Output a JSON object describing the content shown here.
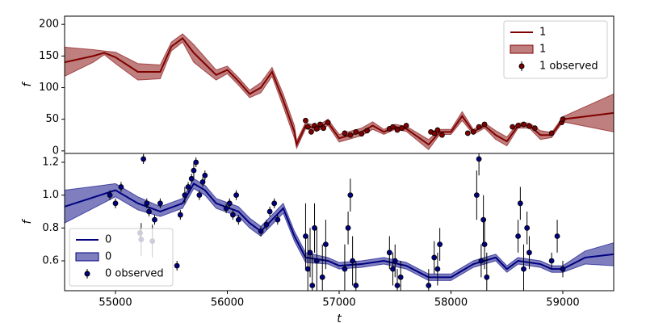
{
  "chart_data": [
    {
      "type": "line",
      "ylabel": "f",
      "xlim": [
        54545,
        59455
      ],
      "ylim": [
        -4,
        213
      ],
      "yticks": [
        0,
        50,
        100,
        150,
        200
      ],
      "legend": "upper right",
      "series": [
        {
          "name": "1",
          "style": "line",
          "color": "#800000",
          "x": [
            54545,
            54800,
            54900,
            55000,
            55200,
            55400,
            55500,
            55600,
            55700,
            55900,
            56000,
            56100,
            56200,
            56300,
            56400,
            56500,
            56600,
            56620,
            56700,
            56800,
            56900,
            57000,
            57200,
            57300,
            57400,
            57500,
            57600,
            57800,
            57900,
            58000,
            58100,
            58200,
            58300,
            58400,
            58500,
            58600,
            58700,
            58800,
            58900,
            59000,
            59455
          ],
          "values": [
            140,
            150,
            155,
            148,
            125,
            125,
            165,
            178,
            155,
            120,
            128,
            110,
            90,
            100,
            125,
            80,
            30,
            10,
            40,
            35,
            45,
            20,
            30,
            40,
            30,
            38,
            35,
            10,
            30,
            30,
            55,
            30,
            40,
            25,
            15,
            40,
            40,
            25,
            25,
            50,
            60
          ]
        },
        {
          "name": "1",
          "style": "band",
          "color": "#800000",
          "x": [
            54545,
            54800,
            54900,
            55000,
            55200,
            55400,
            55500,
            55600,
            55700,
            55900,
            56000,
            56100,
            56200,
            56300,
            56400,
            56500,
            56600,
            56620,
            56700,
            56800,
            56900,
            57000,
            57200,
            57300,
            57400,
            57500,
            57600,
            57800,
            57900,
            58000,
            58100,
            58200,
            58300,
            58400,
            58500,
            58600,
            58700,
            58800,
            58900,
            59000,
            59455
          ],
          "lower": [
            118,
            140,
            152,
            138,
            112,
            114,
            158,
            172,
            140,
            112,
            122,
            104,
            84,
            92,
            118,
            70,
            20,
            4,
            35,
            31,
            40,
            14,
            24,
            34,
            26,
            34,
            31,
            2,
            26,
            26,
            48,
            26,
            36,
            18,
            8,
            36,
            36,
            18,
            21,
            46,
            30
          ],
          "upper": [
            164,
            160,
            158,
            156,
            138,
            136,
            172,
            185,
            168,
            128,
            134,
            116,
            96,
            108,
            132,
            90,
            40,
            16,
            45,
            39,
            50,
            26,
            36,
            46,
            34,
            42,
            39,
            18,
            34,
            34,
            62,
            34,
            44,
            32,
            22,
            44,
            44,
            32,
            29,
            54,
            90
          ]
        },
        {
          "name": "1 observed",
          "style": "errorbar",
          "color": "#800000",
          "x": [
            56700,
            56720,
            56750,
            56780,
            56800,
            56830,
            56860,
            56900,
            57050,
            57100,
            57150,
            57200,
            57250,
            57450,
            57480,
            57520,
            57560,
            57600,
            57820,
            57850,
            57880,
            57920,
            58150,
            58200,
            58250,
            58300,
            58550,
            58600,
            58650,
            58700,
            58750,
            58900,
            58990,
            59000
          ],
          "values": [
            48,
            38,
            30,
            40,
            35,
            42,
            36,
            45,
            28,
            25,
            30,
            27,
            32,
            35,
            38,
            33,
            36,
            40,
            30,
            28,
            33,
            25,
            28,
            30,
            38,
            42,
            38,
            40,
            42,
            39,
            36,
            28,
            45,
            50
          ],
          "errors": [
            4,
            4,
            4,
            4,
            4,
            4,
            4,
            4,
            4,
            4,
            4,
            4,
            4,
            4,
            4,
            4,
            4,
            4,
            4,
            4,
            4,
            4,
            4,
            4,
            4,
            4,
            4,
            4,
            4,
            4,
            4,
            4,
            4,
            4
          ]
        }
      ]
    },
    {
      "type": "line",
      "ylabel": "f",
      "xlabel": "t",
      "xlim": [
        54545,
        59455
      ],
      "ylim": [
        0.418,
        1.254
      ],
      "xticks": [
        55000,
        56000,
        57000,
        58000,
        59000
      ],
      "yticks": [
        0.6,
        0.8,
        {
          "value": 1,
          "label": "1.0"
        },
        1.2
      ],
      "legend": "lower left",
      "series": [
        {
          "name": "0",
          "style": "line",
          "color": "#000080",
          "x": [
            54545,
            55000,
            55200,
            55400,
            55600,
            55700,
            55800,
            55900,
            56100,
            56200,
            56300,
            56500,
            56600,
            56700,
            56900,
            57000,
            57200,
            57400,
            57600,
            57800,
            58000,
            58200,
            58400,
            58500,
            58600,
            58800,
            58900,
            59000,
            59200,
            59455
          ],
          "values": [
            0.93,
            1.03,
            0.95,
            0.9,
            0.95,
            1.07,
            1.03,
            0.95,
            0.9,
            0.83,
            0.78,
            0.92,
            0.75,
            0.62,
            0.6,
            0.57,
            0.58,
            0.6,
            0.57,
            0.5,
            0.5,
            0.58,
            0.62,
            0.55,
            0.6,
            0.58,
            0.55,
            0.55,
            0.62,
            0.64
          ]
        },
        {
          "name": "0",
          "style": "band",
          "color": "#000080",
          "x": [
            54545,
            55000,
            55200,
            55400,
            55600,
            55700,
            55800,
            55900,
            56100,
            56200,
            56300,
            56500,
            56600,
            56700,
            56900,
            57000,
            57200,
            57400,
            57600,
            57800,
            58000,
            58200,
            58400,
            58500,
            58600,
            58800,
            58900,
            59000,
            59200,
            59455
          ],
          "lower": [
            0.83,
            0.99,
            0.91,
            0.87,
            0.92,
            1.04,
            1.0,
            0.92,
            0.87,
            0.8,
            0.75,
            0.89,
            0.72,
            0.59,
            0.58,
            0.55,
            0.56,
            0.58,
            0.55,
            0.48,
            0.48,
            0.56,
            0.6,
            0.53,
            0.58,
            0.56,
            0.53,
            0.53,
            0.58,
            0.57
          ],
          "upper": [
            1.03,
            1.07,
            0.99,
            0.93,
            0.98,
            1.1,
            1.06,
            0.98,
            0.93,
            0.86,
            0.81,
            0.95,
            0.78,
            0.65,
            0.62,
            0.59,
            0.6,
            0.62,
            0.59,
            0.52,
            0.52,
            0.6,
            0.64,
            0.57,
            0.62,
            0.6,
            0.57,
            0.57,
            0.66,
            0.71
          ]
        },
        {
          "name": "0 observed",
          "style": "errorbar",
          "color": "#000080",
          "x": [
            54950,
            55000,
            55050,
            55220,
            55230,
            55250,
            55280,
            55300,
            55330,
            55350,
            55400,
            55550,
            55580,
            55620,
            55650,
            55680,
            55700,
            55720,
            55750,
            55780,
            55800,
            55990,
            56020,
            56050,
            56080,
            56100,
            56300,
            56350,
            56380,
            56420,
            56450,
            56700,
            56720,
            56740,
            56760,
            56780,
            56800,
            56850,
            56880,
            57050,
            57080,
            57100,
            57120,
            57150,
            57450,
            57480,
            57500,
            57520,
            57550,
            57800,
            57850,
            57880,
            57900,
            58230,
            58250,
            58270,
            58290,
            58300,
            58320,
            58600,
            58620,
            58650,
            58680,
            58700,
            58900,
            58950,
            59000
          ],
          "values": [
            1.0,
            0.95,
            1.05,
            0.77,
            0.73,
            1.22,
            0.95,
            0.9,
            0.72,
            0.85,
            0.95,
            0.57,
            0.88,
            1.0,
            1.05,
            1.1,
            1.15,
            1.2,
            1.0,
            1.08,
            1.12,
            0.92,
            0.95,
            0.88,
            1.0,
            0.85,
            0.78,
            0.82,
            0.9,
            0.95,
            0.85,
            0.75,
            0.55,
            0.65,
            0.45,
            0.8,
            0.6,
            0.5,
            0.7,
            0.55,
            0.8,
            1.0,
            0.6,
            0.45,
            0.65,
            0.55,
            0.6,
            0.45,
            0.5,
            0.45,
            0.62,
            0.55,
            0.7,
            1.0,
            1.22,
            0.6,
            0.85,
            0.7,
            0.5,
            0.75,
            0.95,
            0.55,
            0.8,
            0.65,
            0.6,
            0.75,
            0.55
          ],
          "errors": [
            0.03,
            0.03,
            0.03,
            0.03,
            0.1,
            0.03,
            0.03,
            0.03,
            0.1,
            0.03,
            0.03,
            0.03,
            0.03,
            0.05,
            0.03,
            0.03,
            0.05,
            0.03,
            0.03,
            0.03,
            0.03,
            0.03,
            0.03,
            0.03,
            0.03,
            0.03,
            0.03,
            0.03,
            0.03,
            0.03,
            0.03,
            0.2,
            0.2,
            0.15,
            0.2,
            0.15,
            0.2,
            0.2,
            0.15,
            0.15,
            0.1,
            0.1,
            0.15,
            0.15,
            0.1,
            0.1,
            0.1,
            0.1,
            0.1,
            0.1,
            0.1,
            0.1,
            0.1,
            0.15,
            0.1,
            0.1,
            0.15,
            0.15,
            0.15,
            0.1,
            0.1,
            0.15,
            0.1,
            0.1,
            0.05,
            0.1,
            0.05
          ]
        }
      ]
    }
  ]
}
